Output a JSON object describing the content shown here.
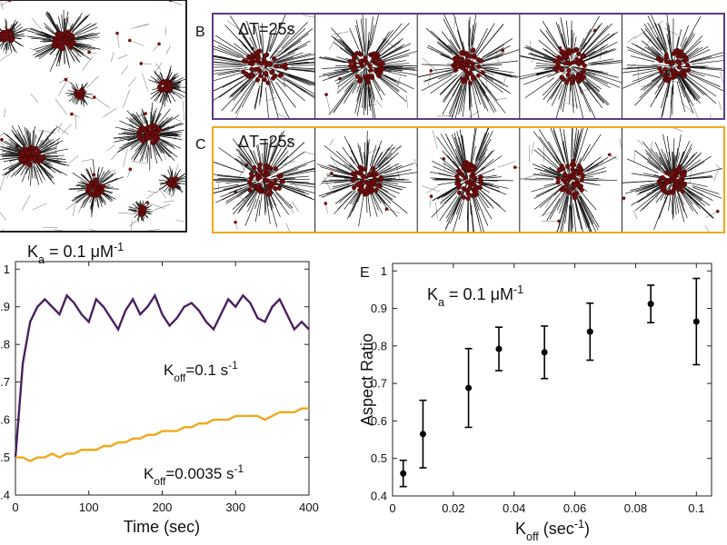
{
  "panels": {
    "b": {
      "label": "B",
      "annotation": "ΔT=25s"
    },
    "c": {
      "label": "C",
      "annotation": "ΔT=25s"
    }
  },
  "chart_data": [
    {
      "type": "line",
      "annotation": {
        "text": "K",
        "sub": "a",
        "text2": " = 0.1 μM",
        "sup": "-1"
      },
      "xlabel": "Time (sec)",
      "x": [
        0,
        10,
        20,
        30,
        40,
        50,
        60,
        70,
        80,
        90,
        100,
        110,
        120,
        130,
        140,
        150,
        160,
        170,
        180,
        190,
        200,
        210,
        220,
        230,
        240,
        250,
        260,
        270,
        280,
        290,
        300,
        310,
        320,
        330,
        340,
        350,
        360,
        370,
        380,
        390,
        400
      ],
      "series": [
        {
          "name": {
            "text": "K",
            "sub": "off",
            "text2": "=0.1 s",
            "sup": "-1"
          },
          "color": "#4a2060",
          "values": [
            0.5,
            0.75,
            0.86,
            0.9,
            0.92,
            0.9,
            0.88,
            0.93,
            0.91,
            0.88,
            0.86,
            0.92,
            0.9,
            0.87,
            0.84,
            0.89,
            0.92,
            0.88,
            0.9,
            0.93,
            0.88,
            0.85,
            0.87,
            0.9,
            0.91,
            0.89,
            0.86,
            0.84,
            0.88,
            0.92,
            0.9,
            0.93,
            0.91,
            0.87,
            0.86,
            0.9,
            0.92,
            0.88,
            0.84,
            0.86,
            0.84
          ]
        },
        {
          "name": {
            "text": "K",
            "sub": "off",
            "text2": "=0.0035 s",
            "sup": "-1"
          },
          "color": "#f0a81c",
          "values": [
            0.5,
            0.5,
            0.49,
            0.5,
            0.5,
            0.51,
            0.5,
            0.51,
            0.51,
            0.52,
            0.52,
            0.52,
            0.53,
            0.53,
            0.54,
            0.54,
            0.55,
            0.55,
            0.56,
            0.56,
            0.57,
            0.57,
            0.57,
            0.58,
            0.58,
            0.59,
            0.59,
            0.6,
            0.6,
            0.6,
            0.61,
            0.61,
            0.61,
            0.61,
            0.6,
            0.61,
            0.62,
            0.62,
            0.62,
            0.63,
            0.63
          ]
        }
      ],
      "xlim": [
        0,
        400
      ],
      "xticks": [
        0,
        100,
        200,
        300,
        400
      ],
      "ylim": [
        0.4,
        1.02
      ],
      "yticks": [
        0.4,
        0.5,
        0.6,
        0.7,
        0.8,
        0.9,
        1
      ]
    },
    {
      "type": "errorbar",
      "panel_label": "E",
      "annotation": {
        "text": "K",
        "sub": "a",
        "text2": " = 0.1 μM",
        "sup": "-1"
      },
      "xlabel": {
        "text": "K",
        "sub": "off",
        "text2": " (sec",
        "sup": "-1",
        "text3": ")"
      },
      "ylabel": "Aspect Ratio",
      "x": [
        0.0035,
        0.01,
        0.025,
        0.035,
        0.05,
        0.065,
        0.085,
        0.1
      ],
      "values": [
        0.46,
        0.565,
        0.688,
        0.792,
        0.783,
        0.838,
        0.912,
        0.865
      ],
      "errors": [
        0.035,
        0.09,
        0.105,
        0.058,
        0.07,
        0.076,
        0.05,
        0.115
      ],
      "color": "#000000",
      "xlim": [
        0,
        0.105
      ],
      "xticks": [
        0,
        0.02,
        0.04,
        0.06,
        0.08,
        0.1
      ],
      "ylim": [
        0.4,
        1.02
      ],
      "yticks": [
        0.4,
        0.5,
        0.6,
        0.7,
        0.8,
        0.9,
        1
      ]
    }
  ]
}
